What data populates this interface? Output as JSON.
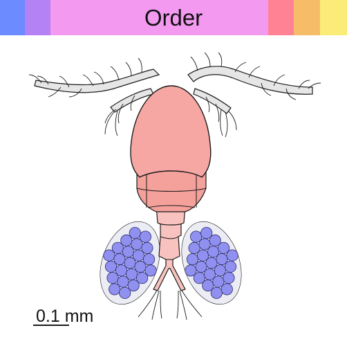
{
  "header": {
    "title": "Order",
    "bands": [
      {
        "name": "blue-band",
        "color": "#6b8bff",
        "flex": 36
      },
      {
        "name": "violet-band",
        "color": "#b482f5",
        "flex": 37
      },
      {
        "name": "pink-band",
        "color": "#f39af0",
        "flex": 315
      },
      {
        "name": "red-band",
        "color": "#ff8294",
        "flex": 37
      },
      {
        "name": "orange-band",
        "color": "#f7bc68",
        "flex": 38
      },
      {
        "name": "yellow-band",
        "color": "#fbec78",
        "flex": 39
      }
    ]
  },
  "scale_bar": {
    "label": "0.1 mm"
  },
  "colors": {
    "body": "#f6a7a3",
    "body_dark": "#f4a09b",
    "tail": "#f8c2bf",
    "antenna": "#e6e6e6",
    "egg": "#8f90ef",
    "egg_sac": "#ececf4",
    "outline": "#1a1a1a"
  }
}
